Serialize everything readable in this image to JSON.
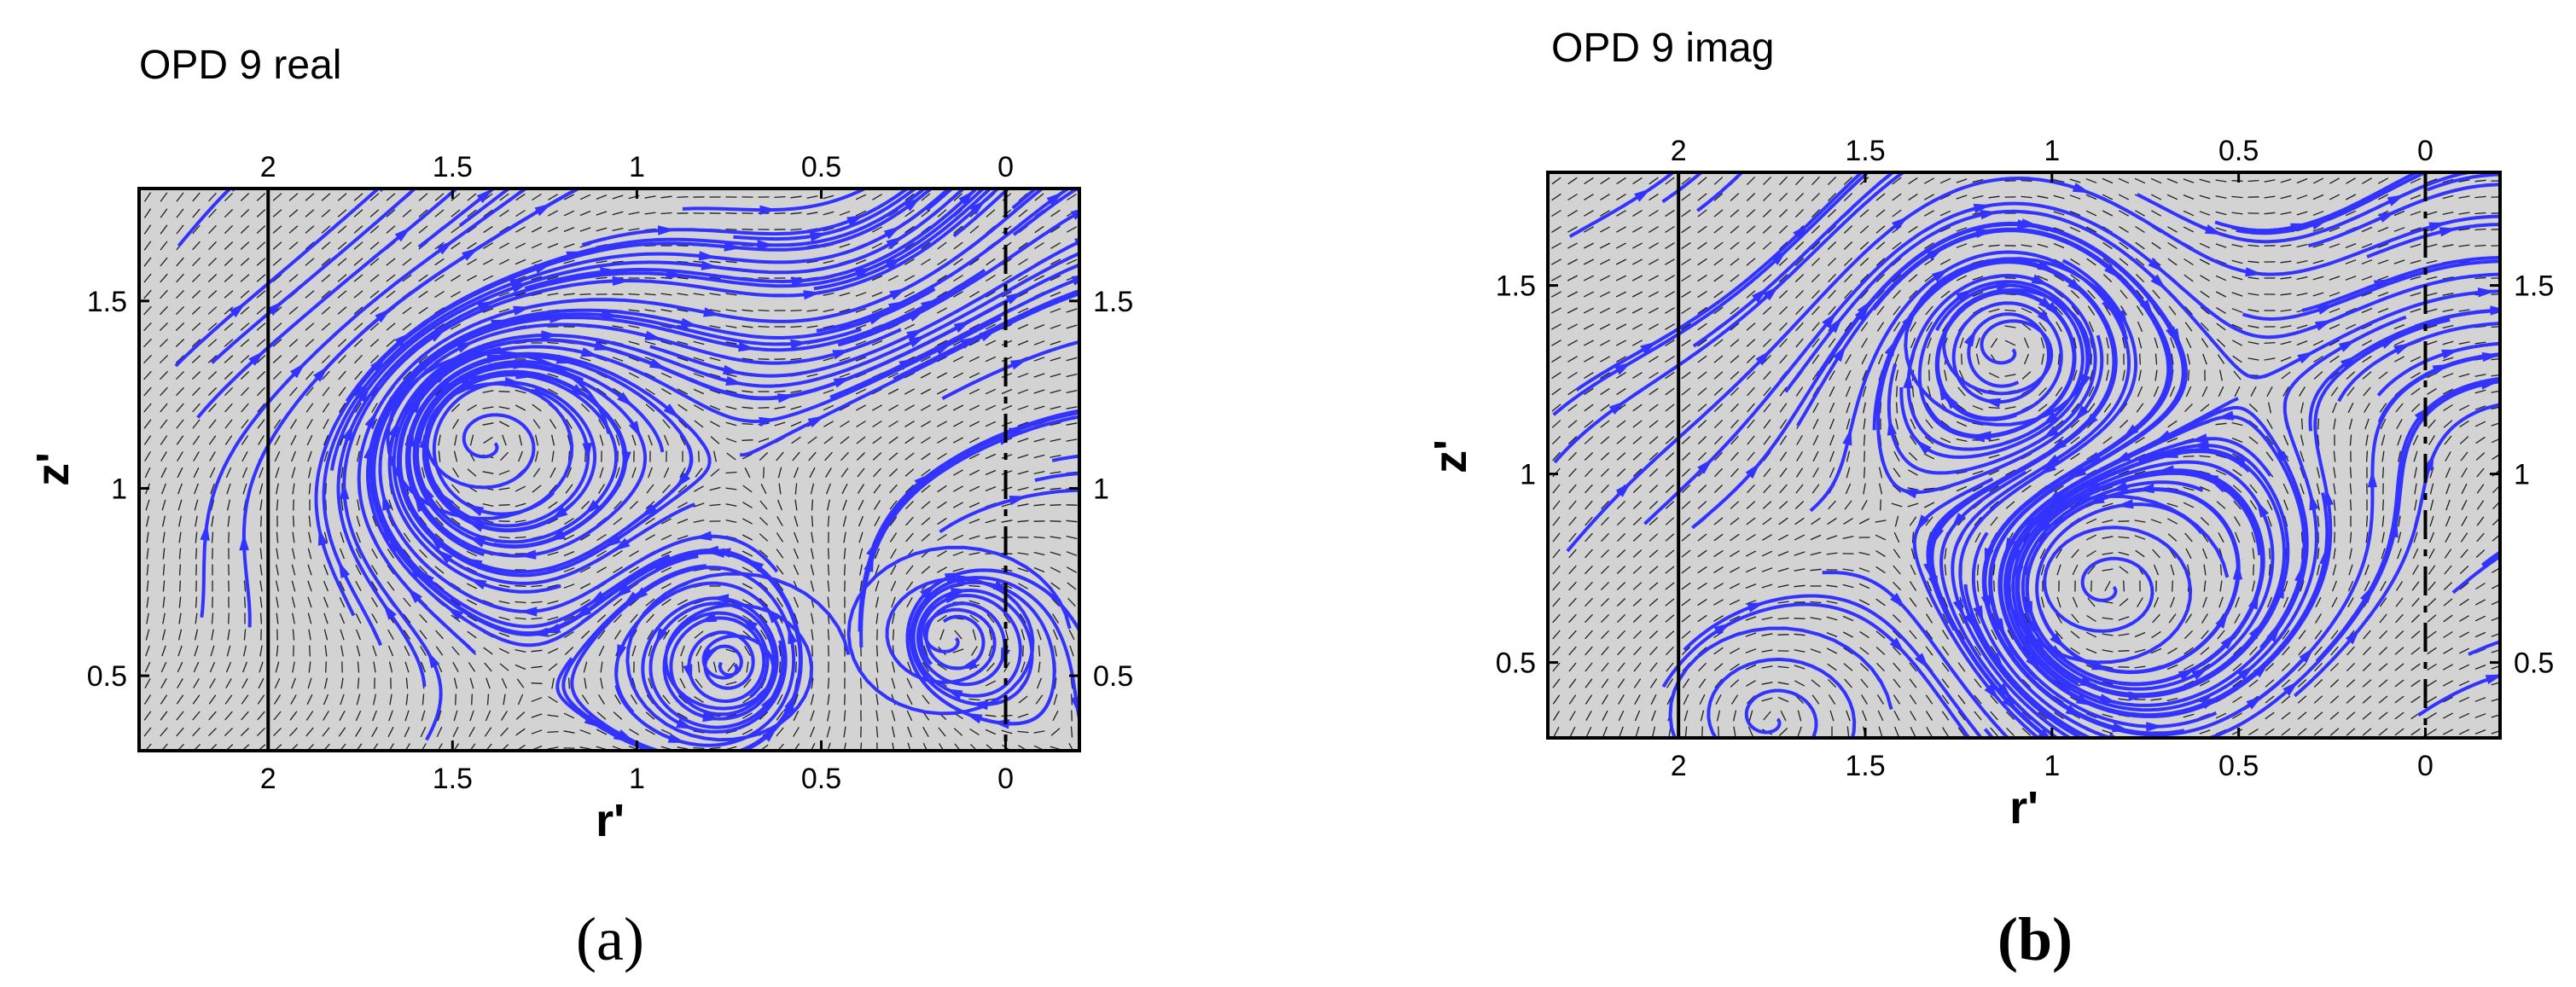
{
  "figure": {
    "panel_a_label": "(a)",
    "panel_b_label": "(b)"
  },
  "chart_data": [
    {
      "type": "streamline",
      "title": "OPD 9 real",
      "xlabel": "r'",
      "ylabel": "z'",
      "xlim": [
        2.35,
        -0.2
      ],
      "ylim": [
        0.3,
        1.8
      ],
      "x_ticks": [
        "2",
        "1.5",
        "1",
        "0.5",
        "0"
      ],
      "x_tick_values": [
        2,
        1.5,
        1,
        0.5,
        0
      ],
      "y_ticks": [
        "1.5",
        "1",
        "0.5"
      ],
      "y_tick_values": [
        1.5,
        1,
        0.5
      ],
      "reference_lines": {
        "solid_r": 2,
        "dashed_r": 0
      },
      "vortex_centers": [
        {
          "r": 1.4,
          "z": 1.12
        },
        {
          "r": 0.75,
          "z": 0.53
        },
        {
          "r": 0.15,
          "z": 0.6
        }
      ],
      "series_color": "#3333ff",
      "background_color": "#d3d3d3"
    },
    {
      "type": "streamline",
      "title": "OPD 9 imag",
      "xlabel": "r'",
      "ylabel": "z'",
      "xlim": [
        2.35,
        -0.2
      ],
      "ylim": [
        0.3,
        1.8
      ],
      "x_ticks": [
        "2",
        "1.5",
        "1",
        "0.5",
        "0"
      ],
      "x_tick_values": [
        2,
        1.5,
        1,
        0.5,
        0
      ],
      "y_ticks": [
        "1.5",
        "1",
        "0.5"
      ],
      "y_tick_values": [
        1.5,
        1,
        0.5
      ],
      "reference_lines": {
        "solid_r": 2,
        "dashed_r": 0
      },
      "vortex_centers": [
        {
          "r": 1.12,
          "z": 1.33
        },
        {
          "r": 0.85,
          "z": 0.7
        },
        {
          "r": 1.75,
          "z": 0.35
        }
      ],
      "series_color": "#3333ff",
      "background_color": "#d3d3d3"
    }
  ]
}
